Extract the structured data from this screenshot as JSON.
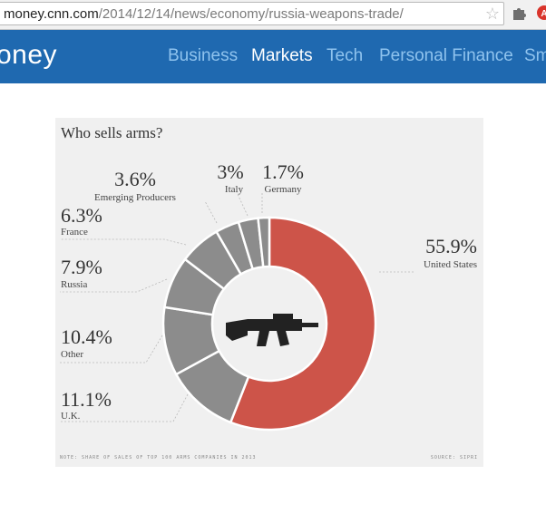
{
  "browser": {
    "url_host": "money.cnn.com",
    "url_path": "/2014/12/14/news/economy/russia-weapons-trade/",
    "icons": [
      "star-icon",
      "puzzle-extension-icon",
      "red-extension-icon"
    ]
  },
  "site": {
    "logo_text": "oney",
    "nav": [
      "Business",
      "Markets",
      "Tech",
      "Personal Finance",
      "Sm"
    ],
    "active_nav": "Markets"
  },
  "graphic": {
    "title": "Who sells arms?",
    "note": "Note: share of sales of top 100 arms companies in 2013",
    "source": "Source: SIPRI",
    "center_icon": "rifle-icon"
  },
  "chart_data": {
    "type": "pie",
    "variant": "donut",
    "title": "Who sells arms?",
    "categories": [
      "United States",
      "U.K.",
      "Other",
      "Russia",
      "France",
      "Emerging Producers",
      "Italy",
      "Germany"
    ],
    "values": [
      55.9,
      11.1,
      10.4,
      7.9,
      6.3,
      3.6,
      3,
      1.7
    ],
    "labels": [
      "55.9%",
      "11.1%",
      "10.4%",
      "7.9%",
      "6.3%",
      "3.6%",
      "3%",
      "1.7%"
    ],
    "colors": {
      "United States": "#cd5449",
      "others": "#8c8c8c"
    }
  }
}
